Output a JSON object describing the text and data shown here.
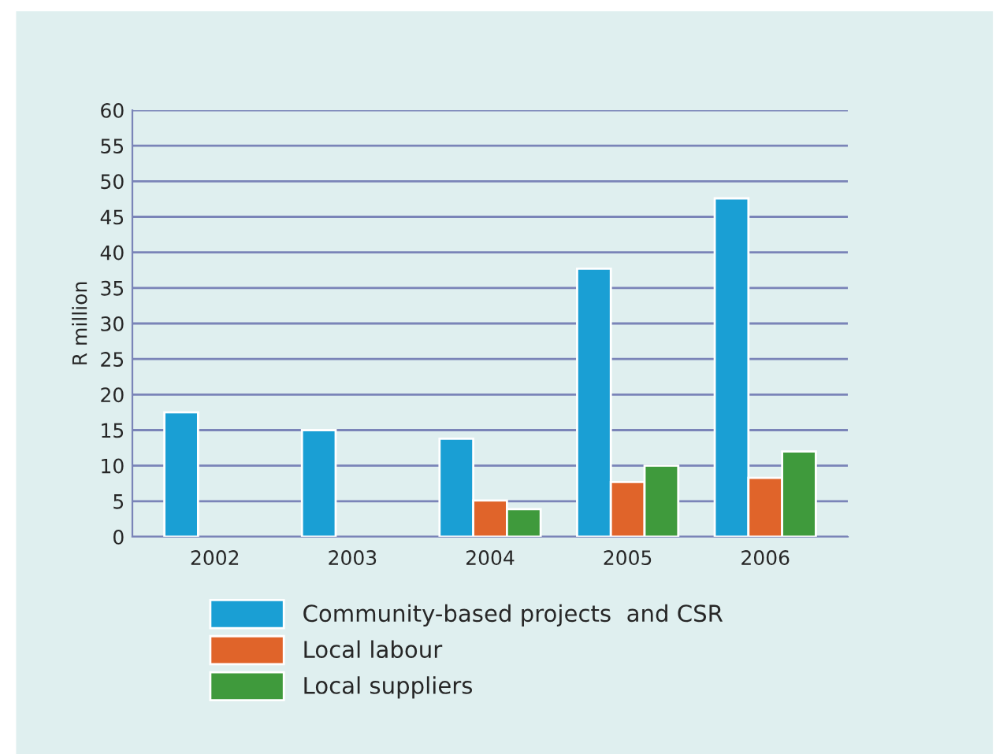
{
  "chart_data": {
    "type": "bar",
    "ylabel": "R million",
    "categories": [
      "2002",
      "2003",
      "2004",
      "2005",
      "2006"
    ],
    "series": [
      {
        "name": "Community-based projects  and CSR",
        "color": "#1a9fd4",
        "values": [
          17.5,
          15,
          13.8,
          37.7,
          47.6
        ]
      },
      {
        "name": "Local labour",
        "color": "#e0642a",
        "values": [
          null,
          null,
          5.1,
          7.7,
          8.3
        ]
      },
      {
        "name": "Local suppliers",
        "color": "#3f9a3c",
        "values": [
          null,
          null,
          3.9,
          10,
          12
        ]
      }
    ],
    "ylim": [
      0,
      60
    ],
    "yticks": [
      0,
      5,
      10,
      15,
      20,
      25,
      30,
      35,
      40,
      45,
      50,
      55,
      60
    ],
    "grid": "y",
    "legend": "bottom"
  }
}
